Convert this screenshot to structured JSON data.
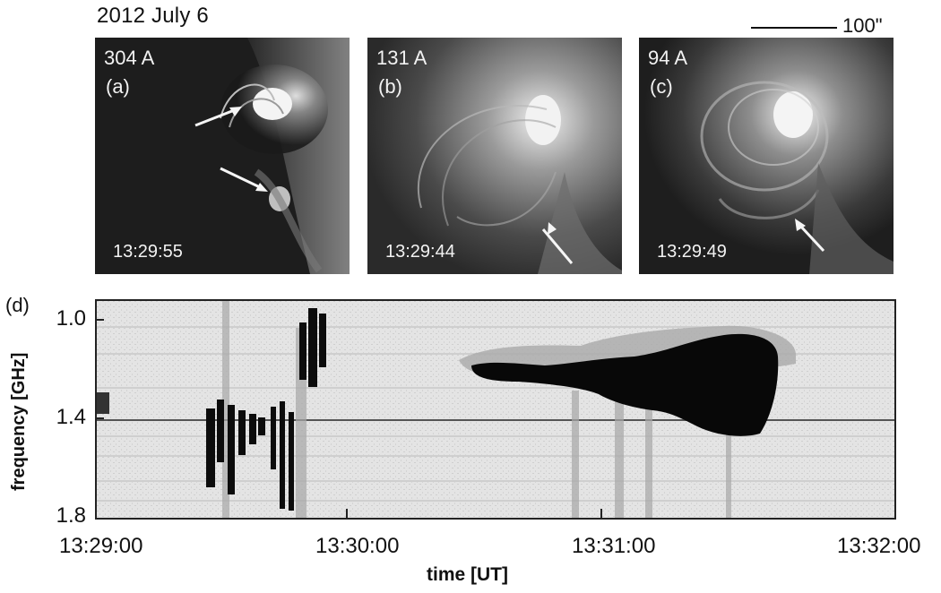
{
  "figure": {
    "date_title": "2012 July 6",
    "scale_bar_label": "100\""
  },
  "panels": [
    {
      "wavelength": "304 A",
      "letter": "(a)",
      "time": "13:29:55"
    },
    {
      "wavelength": "131 A",
      "letter": "(b)",
      "time": "13:29:44"
    },
    {
      "wavelength": "94 A",
      "letter": "(c)",
      "time": "13:29:49"
    }
  ],
  "spectrogram": {
    "panel_letter": "(d)",
    "ylabel": "frequency [GHz]",
    "xlabel": "time [UT]",
    "yticks": [
      "1.0",
      "1.4",
      "1.8"
    ],
    "xticks": [
      "13:29:00",
      "13:30:00",
      "13:31:00",
      "13:32:00"
    ]
  }
}
